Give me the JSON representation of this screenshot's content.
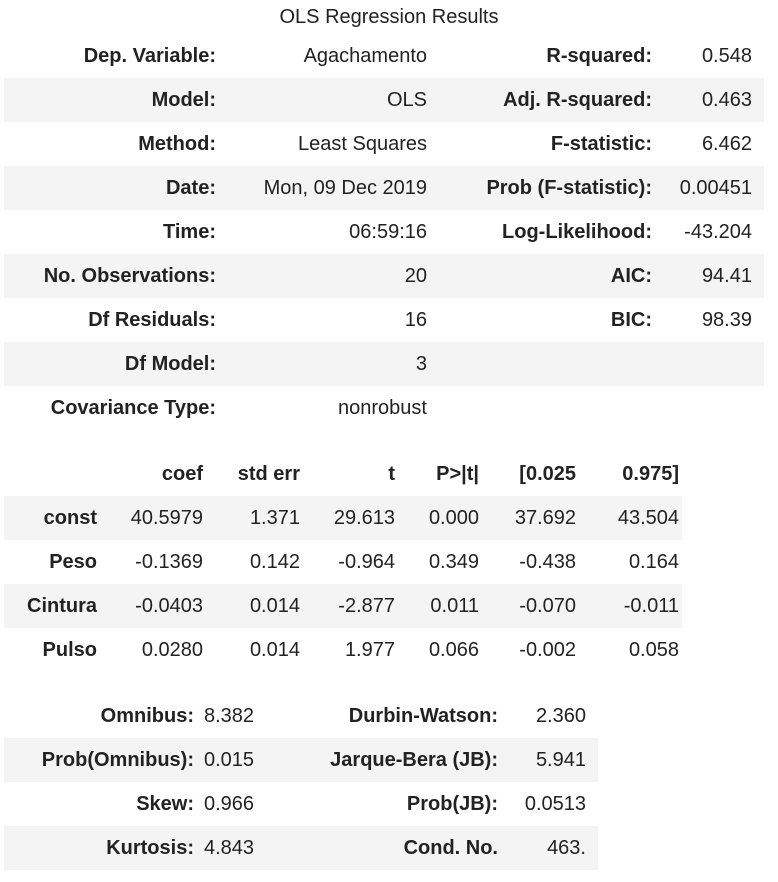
{
  "title": "OLS Regression Results",
  "summary": {
    "rows": [
      {
        "l1": "Dep. Variable:",
        "v1": "Agachamento",
        "l2": "R-squared:",
        "v2": "0.548"
      },
      {
        "l1": "Model:",
        "v1": "OLS",
        "l2": "Adj. R-squared:",
        "v2": "0.463"
      },
      {
        "l1": "Method:",
        "v1": "Least Squares",
        "l2": "F-statistic:",
        "v2": "6.462"
      },
      {
        "l1": "Date:",
        "v1": "Mon, 09 Dec 2019",
        "l2": "Prob (F-statistic):",
        "v2": "0.00451"
      },
      {
        "l1": "Time:",
        "v1": "06:59:16",
        "l2": "Log-Likelihood:",
        "v2": "-43.204"
      },
      {
        "l1": "No. Observations:",
        "v1": "20",
        "l2": "AIC:",
        "v2": "94.41"
      },
      {
        "l1": "Df Residuals:",
        "v1": "16",
        "l2": "BIC:",
        "v2": "98.39"
      },
      {
        "l1": "Df Model:",
        "v1": "3",
        "l2": "",
        "v2": ""
      },
      {
        "l1": "Covariance Type:",
        "v1": "nonrobust",
        "l2": "",
        "v2": ""
      }
    ]
  },
  "coef": {
    "headers": [
      "",
      "coef",
      "std err",
      "t",
      "P>|t|",
      "[0.025",
      "0.975]"
    ],
    "rows": [
      {
        "name": "const",
        "coef": "40.5979",
        "se": "1.371",
        "t": "29.613",
        "p": "0.000",
        "lo": "37.692",
        "hi": "43.504"
      },
      {
        "name": "Peso",
        "coef": "-0.1369",
        "se": "0.142",
        "t": "-0.964",
        "p": "0.349",
        "lo": "-0.438",
        "hi": "0.164"
      },
      {
        "name": "Cintura",
        "coef": "-0.0403",
        "se": "0.014",
        "t": "-2.877",
        "p": "0.011",
        "lo": "-0.070",
        "hi": "-0.011"
      },
      {
        "name": "Pulso",
        "coef": "0.0280",
        "se": "0.014",
        "t": "1.977",
        "p": "0.066",
        "lo": "-0.002",
        "hi": "0.058"
      }
    ]
  },
  "diagnostics": {
    "rows": [
      {
        "l1": "Omnibus:",
        "v1": "8.382",
        "l2": "Durbin-Watson:",
        "v2": "2.360"
      },
      {
        "l1": "Prob(Omnibus):",
        "v1": "0.015",
        "l2": "Jarque-Bera (JB):",
        "v2": "5.941"
      },
      {
        "l1": "Skew:",
        "v1": "0.966",
        "l2": "Prob(JB):",
        "v2": "0.0513"
      },
      {
        "l1": "Kurtosis:",
        "v1": "4.843",
        "l2": "Cond. No.",
        "v2": "463."
      }
    ]
  }
}
